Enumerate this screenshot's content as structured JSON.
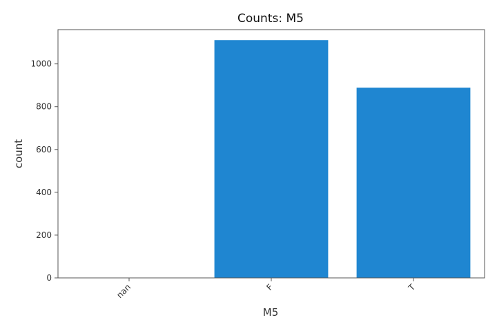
{
  "chart_data": {
    "type": "bar",
    "title": "Counts: M5",
    "xlabel": "M5",
    "ylabel": "count",
    "categories": [
      "nan",
      "F",
      "T"
    ],
    "values": [
      0,
      1111,
      889
    ],
    "ylim": [
      0,
      1160
    ],
    "yticks": [
      0,
      200,
      400,
      600,
      800,
      1000
    ],
    "grid": false,
    "legend": "none",
    "bar_color": "#1f86d1",
    "axis_color": "#555555"
  }
}
